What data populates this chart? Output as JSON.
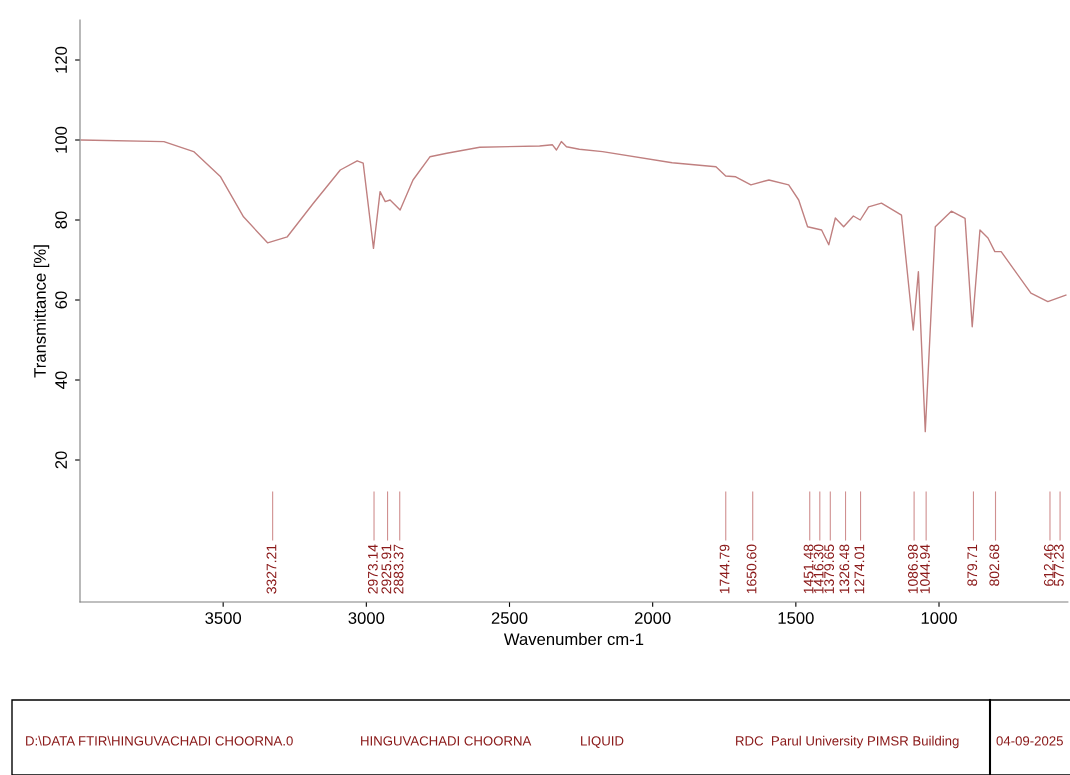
{
  "chart_data": {
    "type": "line",
    "xlabel": "Wavenumber cm-1",
    "ylabel": "Transmittance [%]",
    "x": [
      3996,
      3707,
      3603,
      3509,
      3429,
      3345,
      3276,
      3185,
      3091,
      3032,
      3011,
      2975,
      2952,
      2934,
      2917,
      2882,
      2837,
      2778,
      2719,
      2604,
      2395,
      2350,
      2336,
      2319,
      2301,
      2256,
      2175,
      1932,
      1779,
      1745,
      1710,
      1657,
      1594,
      1525,
      1490,
      1459,
      1410,
      1385,
      1362,
      1333,
      1299,
      1275,
      1246,
      1201,
      1131,
      1090,
      1072,
      1048,
      1013,
      957,
      909,
      884,
      857,
      829,
      805,
      783,
      679,
      620,
      557
    ],
    "series": [
      {
        "color": "#c08080",
        "values": [
          100,
          99.6,
          97.1,
          90.8,
          80.8,
          74.3,
          75.8,
          84.2,
          92.5,
          94.8,
          94.2,
          72.9,
          87.1,
          84.6,
          85,
          82.5,
          90,
          95.8,
          96.7,
          98.2,
          98.5,
          98.8,
          97.5,
          99.6,
          98.3,
          97.7,
          97.1,
          94.3,
          93.3,
          91,
          90.8,
          88.8,
          90,
          88.8,
          85,
          78.3,
          77.5,
          73.8,
          80.5,
          78.3,
          81,
          80,
          83.3,
          84.2,
          81.2,
          52.5,
          67.1,
          27.1,
          78.3,
          82.2,
          80.4,
          53.3,
          77.5,
          75.5,
          72.1,
          72.1,
          61.7,
          59.6,
          61.2
        ]
      }
    ],
    "xlim": [
      4000,
      550
    ],
    "xticks": [
      3500,
      3000,
      2500,
      2000,
      1500,
      1000
    ],
    "ylim": [
      -15.5,
      130
    ],
    "yticks": [
      20,
      40,
      60,
      80,
      100,
      120
    ],
    "grid": false,
    "legend": false,
    "ref_lines": [
      {
        "axis": "x",
        "value": 3327.21,
        "label": "3327.21",
        "color": "#d09090"
      },
      {
        "axis": "x",
        "value": 2973.14,
        "label": "2973.14",
        "color": "#d09090"
      },
      {
        "axis": "x",
        "value": 2925.91,
        "label": "2925.91",
        "color": "#d09090"
      },
      {
        "axis": "x",
        "value": 2883.37,
        "label": "2883.37",
        "color": "#d09090"
      },
      {
        "axis": "x",
        "value": 1744.79,
        "label": "1744.79",
        "color": "#d09090"
      },
      {
        "axis": "x",
        "value": 1650.6,
        "label": "1650.60",
        "color": "#d09090"
      },
      {
        "axis": "x",
        "value": 1451.48,
        "label": "1451.48",
        "color": "#d09090"
      },
      {
        "axis": "x",
        "value": 1416.3,
        "label": "1416.30",
        "color": "#d09090"
      },
      {
        "axis": "x",
        "value": 1379.65,
        "label": "1379.65",
        "color": "#d09090"
      },
      {
        "axis": "x",
        "value": 1326.48,
        "label": "1326.48",
        "color": "#d09090"
      },
      {
        "axis": "x",
        "value": 1274.01,
        "label": "1274.01",
        "color": "#d09090"
      },
      {
        "axis": "x",
        "value": 1086.98,
        "label": "1086.98",
        "color": "#d09090"
      },
      {
        "axis": "x",
        "value": 1044.94,
        "label": "1044.94",
        "color": "#d09090"
      },
      {
        "axis": "x",
        "value": 879.71,
        "label": "879.71",
        "color": "#d09090"
      },
      {
        "axis": "x",
        "value": 802.68,
        "label": "802.68",
        "color": "#d09090"
      },
      {
        "axis": "x",
        "value": 612.46,
        "label": "612.46",
        "color": "#d09090"
      },
      {
        "axis": "x",
        "value": 577.23,
        "label": "577.23",
        "color": "#d09090"
      }
    ],
    "annotations": [
      "D:\\DATA FTIR\\HINGUVACHADI CHOORNA.0",
      "HINGUVACHADI CHOORNA",
      "LIQUID",
      "RDC  Parul University PIMSR Building",
      "04-09-2025"
    ]
  }
}
